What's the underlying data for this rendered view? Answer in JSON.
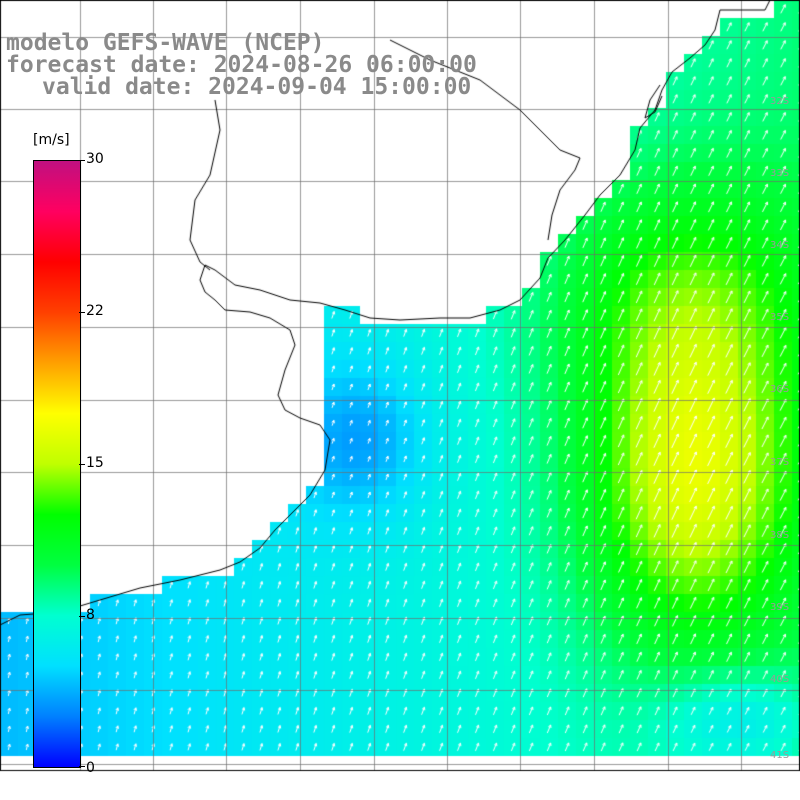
{
  "header": {
    "line1": "modelo GEFS-WAVE (NCEP)",
    "line2": "forecast date: 2024-08-26 06:00:00",
    "line3": "valid date: 2024-09-04 15:00:00"
  },
  "colorbar": {
    "unit": "[m/s]",
    "ticks": [
      "30",
      "22",
      "15",
      "8",
      "0"
    ],
    "range": [
      0,
      30
    ],
    "colors": [
      "#0000ff",
      "#0080ff",
      "#00e0ff",
      "#00ffd0",
      "#00ff40",
      "#00ff00",
      "#c0ff00",
      "#ffff00",
      "#ffa000",
      "#ff4000",
      "#ff0000",
      "#ff0060",
      "#c01080"
    ]
  },
  "map": {
    "variable": "wind speed",
    "lat_labels": [
      "32S",
      "33S",
      "34S",
      "35S",
      "36S",
      "37S",
      "38S",
      "39S",
      "40S",
      "41S"
    ],
    "lon_labels": [
      "",
      "",
      "",
      "",
      "",
      "",
      "",
      ""
    ],
    "grid_on": true,
    "land_color": "#ffffff",
    "coast_color": "#000000"
  }
}
